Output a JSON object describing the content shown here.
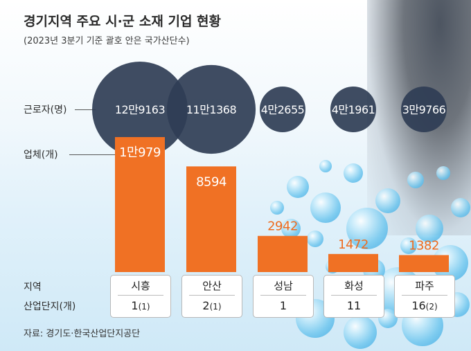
{
  "title": "경기지역 주요 시·군 소재 기업 현황",
  "subtitle": "(2023년 3분기 기준 괄호 안은 국가산단수)",
  "row_labels": {
    "workers": "근로자(명)",
    "companies": "업체(개)",
    "region": "지역",
    "complexes": "산업단지(개)"
  },
  "source": "자료: 경기도·한국산업단지공단",
  "colors": {
    "bubble": "#2f3d55",
    "bar": "#f07124",
    "bar_label_outside": "#ee6b1e",
    "text_inside": "#ffffff"
  },
  "regions": [
    {
      "name": "시흥",
      "complexes": "1",
      "national": "(1)"
    },
    {
      "name": "안산",
      "complexes": "2",
      "national": "(1)"
    },
    {
      "name": "성남",
      "complexes": "1",
      "national": ""
    },
    {
      "name": "화성",
      "complexes": "11",
      "national": ""
    },
    {
      "name": "파주",
      "complexes": "16",
      "national": "(2)"
    }
  ],
  "chart_data": {
    "type": "bar",
    "categories": [
      "시흥",
      "안산",
      "성남",
      "화성",
      "파주"
    ],
    "series": [
      {
        "name": "업체(개)",
        "values": [
          10979,
          8594,
          2942,
          1472,
          1382
        ],
        "labels": [
          "1만979",
          "8594",
          "2942",
          "1472",
          "1382"
        ]
      },
      {
        "name": "근로자(명)",
        "values": [
          129163,
          111368,
          42655,
          41961,
          39766
        ],
        "labels": [
          "12만9163",
          "11만1368",
          "4만2655",
          "4만1961",
          "3만9766"
        ]
      }
    ],
    "grid": false
  }
}
